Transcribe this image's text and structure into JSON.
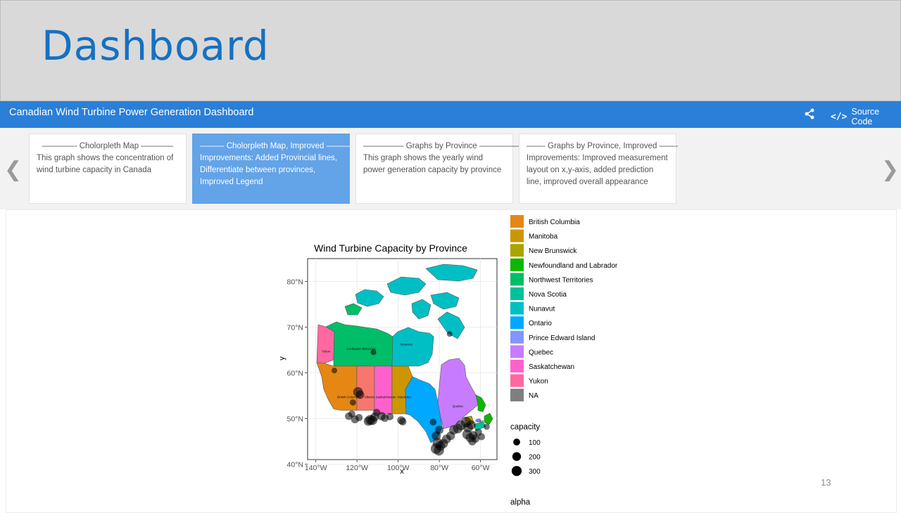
{
  "slide": {
    "title": "Dashboard",
    "page_number": "13"
  },
  "navbar": {
    "title": "Canadian Wind Turbine Power Generation Dashboard",
    "share_icon": "share-icon",
    "source_label": "Source Code",
    "source_icon": "code-icon"
  },
  "storyboard": {
    "prev_icon": "chevron-left-icon",
    "next_icon": "chevron-right-icon",
    "cards": [
      {
        "title": "————- Cholorpleth Map ————",
        "desc": "This graph shows the concentration of wind turbine capacity in Canada",
        "active": false
      },
      {
        "title": "——— Cholorpleth Map, Improved ———",
        "desc": "Improvements: Added Provincial lines, Differentiate between provinces, Improved Legend",
        "active": true
      },
      {
        "title": "————— Graphs by Province —————",
        "desc": "This graph shows the yearly wind power generation capacity by province",
        "active": false
      },
      {
        "title": "——- Graphs by Province, Improved ——-",
        "desc": "Improvements: Improved measurement layout on x,y-axis, added prediction line, improved overall appearance",
        "active": false
      }
    ]
  },
  "chart_data": {
    "type": "map",
    "title": "Wind Turbine Capacity by Province",
    "xlabel": "x",
    "ylabel": "y",
    "x_ticks": [
      "140°W",
      "120°W",
      "100°W",
      "80°W",
      "60°W"
    ],
    "x_tick_values": [
      -140,
      -120,
      -100,
      -80,
      -60
    ],
    "y_ticks": [
      "40°N",
      "50°N",
      "60°N",
      "70°N",
      "80°N"
    ],
    "y_tick_values": [
      40,
      50,
      60,
      70,
      80
    ],
    "xlim": [
      -144,
      -52
    ],
    "ylim": [
      41,
      85
    ],
    "grid": true,
    "legend_fill_title": "",
    "legend_size_title": "capacity",
    "legend_size_entries": [
      {
        "label": "100",
        "value": 100
      },
      {
        "label": "200",
        "value": 200
      },
      {
        "label": "300",
        "value": 300
      }
    ],
    "legend_next_title": "alpha",
    "provinces": [
      {
        "name": "British Columbia",
        "color": "#e68613"
      },
      {
        "name": "Manitoba",
        "color": "#cd9600"
      },
      {
        "name": "New Brunswick",
        "color": "#aba300"
      },
      {
        "name": "Newfoundland and Labrador",
        "color": "#0cb702"
      },
      {
        "name": "Northwest Territories",
        "color": "#00be67"
      },
      {
        "name": "Nova Scotia",
        "color": "#00c19a"
      },
      {
        "name": "Nunavut",
        "color": "#00bfc4"
      },
      {
        "name": "Ontario",
        "color": "#00a9ff"
      },
      {
        "name": "Prince Edward Island",
        "color": "#8494ff"
      },
      {
        "name": "Quebec",
        "color": "#c77cff"
      },
      {
        "name": "Saskatchewan",
        "color": "#ff61cc"
      },
      {
        "name": "Yukon",
        "color": "#ff68a1"
      },
      {
        "name": "NA",
        "color": "#7f7f7f"
      }
    ],
    "map_labels": [
      {
        "text": "Yukon",
        "lon": -135,
        "lat": 64.5
      },
      {
        "text": "Northwest Territories",
        "lon": -118,
        "lat": 65
      },
      {
        "text": "Nunavut",
        "lon": -96,
        "lat": 66
      },
      {
        "text": "British Columbia",
        "lon": -124,
        "lat": 54.5
      },
      {
        "text": "Alberta",
        "lon": -114,
        "lat": 54.5
      },
      {
        "text": "Saskatchewan",
        "lon": -106,
        "lat": 54.5
      },
      {
        "text": "Manitoba",
        "lon": -97,
        "lat": 54.5
      },
      {
        "text": "Quebec",
        "lon": -71,
        "lat": 52.5
      },
      {
        "text": "Labr",
        "lon": -60,
        "lat": 49.2
      }
    ],
    "points": [
      {
        "lon": -119.5,
        "lat": 55.8,
        "capacity": 240
      },
      {
        "lon": -118.5,
        "lat": 55.2,
        "capacity": 150
      },
      {
        "lon": -122,
        "lat": 53.5,
        "capacity": 60
      },
      {
        "lon": -122.5,
        "lat": 51,
        "capacity": 90
      },
      {
        "lon": -124,
        "lat": 50.5,
        "capacity": 110
      },
      {
        "lon": -121,
        "lat": 49.8,
        "capacity": 130
      },
      {
        "lon": -119,
        "lat": 50.2,
        "capacity": 100
      },
      {
        "lon": -113.5,
        "lat": 49.7,
        "capacity": 260
      },
      {
        "lon": -112.5,
        "lat": 49.6,
        "capacity": 230
      },
      {
        "lon": -111.5,
        "lat": 50.3,
        "capacity": 170
      },
      {
        "lon": -114.5,
        "lat": 49.4,
        "capacity": 200
      },
      {
        "lon": -110.5,
        "lat": 51.3,
        "capacity": 110
      },
      {
        "lon": -108,
        "lat": 50.5,
        "capacity": 150
      },
      {
        "lon": -106.5,
        "lat": 50.1,
        "capacity": 120
      },
      {
        "lon": -104,
        "lat": 50.4,
        "capacity": 100
      },
      {
        "lon": -98.5,
        "lat": 49.6,
        "capacity": 140
      },
      {
        "lon": -97.8,
        "lat": 49.3,
        "capacity": 110
      },
      {
        "lon": -131,
        "lat": 60.5,
        "capacity": 40
      },
      {
        "lon": -112,
        "lat": 64.5,
        "capacity": 40
      },
      {
        "lon": -75,
        "lat": 68.5,
        "capacity": 40
      },
      {
        "lon": -83,
        "lat": 49.2,
        "capacity": 80
      },
      {
        "lon": -80,
        "lat": 47.5,
        "capacity": 160
      },
      {
        "lon": -81.5,
        "lat": 46.2,
        "capacity": 200
      },
      {
        "lon": -80.8,
        "lat": 44.6,
        "capacity": 280
      },
      {
        "lon": -81.6,
        "lat": 43.4,
        "capacity": 300
      },
      {
        "lon": -80.2,
        "lat": 43.0,
        "capacity": 280
      },
      {
        "lon": -79.5,
        "lat": 44.0,
        "capacity": 230
      },
      {
        "lon": -78,
        "lat": 44.5,
        "capacity": 200
      },
      {
        "lon": -76.5,
        "lat": 45.5,
        "capacity": 190
      },
      {
        "lon": -74.5,
        "lat": 46.2,
        "capacity": 170
      },
      {
        "lon": -73,
        "lat": 47.5,
        "capacity": 210
      },
      {
        "lon": -71,
        "lat": 47.8,
        "capacity": 230
      },
      {
        "lon": -69.5,
        "lat": 48.5,
        "capacity": 260
      },
      {
        "lon": -67,
        "lat": 49.2,
        "capacity": 290
      },
      {
        "lon": -66,
        "lat": 48.0,
        "capacity": 240
      },
      {
        "lon": -64.5,
        "lat": 48.6,
        "capacity": 200
      },
      {
        "lon": -66.5,
        "lat": 46.5,
        "capacity": 230
      },
      {
        "lon": -65,
        "lat": 45.8,
        "capacity": 200
      },
      {
        "lon": -63.5,
        "lat": 46.3,
        "capacity": 170
      },
      {
        "lon": -62.5,
        "lat": 45.6,
        "capacity": 150
      },
      {
        "lon": -64,
        "lat": 45.0,
        "capacity": 140
      },
      {
        "lon": -61,
        "lat": 47.0,
        "capacity": 100
      },
      {
        "lon": -57,
        "lat": 48.2,
        "capacity": 60
      },
      {
        "lon": -59.5,
        "lat": 46.0,
        "capacity": 90
      }
    ]
  }
}
